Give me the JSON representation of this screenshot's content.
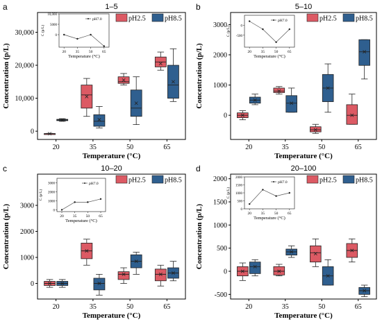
{
  "colors": {
    "ph25_fill": "#dc5a64",
    "ph85_fill": "#2f5f8f",
    "axis": "#000000",
    "inset_line": "#555555"
  },
  "chart_data": [
    {
      "type": "box",
      "panel": "a",
      "title": "1–5",
      "xlabel": "Temperature (°C)",
      "ylabel": "Concentration (p/L)",
      "ylim": [
        -2500,
        36000
      ],
      "yticks": [
        0,
        10000,
        20000,
        30000
      ],
      "ytick_labels": [
        "0",
        "10,000",
        "20,000",
        "30,000"
      ],
      "categories": [
        "20",
        "35",
        "50",
        "65"
      ],
      "legend": [
        "pH2.5",
        "pH8.5"
      ],
      "series": [
        {
          "name": "pH2.5",
          "boxes": [
            {
              "min": -900,
              "q1": -800,
              "median": -750,
              "q3": -700,
              "max": -650,
              "mean": -750
            },
            {
              "min": 4500,
              "q1": 7000,
              "median": 11000,
              "q3": 14000,
              "max": 16000,
              "mean": 10500
            },
            {
              "min": 14000,
              "q1": 14500,
              "median": 15000,
              "q3": 16500,
              "max": 17500,
              "mean": 15500
            },
            {
              "min": 18500,
              "q1": 19500,
              "median": 21000,
              "q3": 22500,
              "max": 24000,
              "mean": 20500
            }
          ]
        },
        {
          "name": "pH8.5",
          "boxes": [
            {
              "min": 3000,
              "q1": 3200,
              "median": 3400,
              "q3": 3600,
              "max": 3800,
              "mean": 3400
            },
            {
              "min": 1000,
              "q1": 1500,
              "median": 3000,
              "q3": 5000,
              "max": 7500,
              "mean": 3500
            },
            {
              "min": 2000,
              "q1": 4500,
              "median": 7000,
              "q3": 12500,
              "max": 16500,
              "mean": 8500
            },
            {
              "min": 9000,
              "q1": 10000,
              "median": 14000,
              "q3": 20000,
              "max": 25000,
              "mean": 15000
            }
          ]
        }
      ],
      "inset": {
        "series_name": "pH7.0",
        "xlabel": "Temperature (°C)",
        "ylabel": "C (p/L)",
        "categories": [
          "20",
          "35",
          "50",
          "65"
        ],
        "ylim": [
          -6000,
          10000
        ],
        "yticks": [
          0,
          5000,
          10000
        ],
        "ytick_labels": [
          "0",
          "5000",
          "10,000"
        ],
        "values": [
          0,
          -2000,
          0,
          -5500
        ]
      }
    },
    {
      "type": "box",
      "panel": "b",
      "title": "5–10",
      "xlabel": "Temperature (°C)",
      "ylabel": "Concentration (p/L)",
      "ylim": [
        -800,
        3400
      ],
      "yticks": [
        0,
        1000,
        2000,
        3000
      ],
      "ytick_labels": [
        "0",
        "1000",
        "2000",
        "3000"
      ],
      "categories": [
        "20",
        "35",
        "50",
        "65"
      ],
      "legend": [
        "pH2.5",
        "pH8.5"
      ],
      "series": [
        {
          "name": "pH2.5",
          "boxes": [
            {
              "min": -150,
              "q1": -80,
              "median": 0,
              "q3": 80,
              "max": 150,
              "mean": 0
            },
            {
              "min": 700,
              "q1": 750,
              "median": 800,
              "q3": 900,
              "max": 950,
              "mean": 800
            },
            {
              "min": -600,
              "q1": -550,
              "median": -480,
              "q3": -380,
              "max": -300,
              "mean": -480
            },
            {
              "min": -300,
              "q1": -300,
              "median": 0,
              "q3": 350,
              "max": 700,
              "mean": 0
            }
          ]
        },
        {
          "name": "pH8.5",
          "boxes": [
            {
              "min": 350,
              "q1": 400,
              "median": 500,
              "q3": 600,
              "max": 700,
              "mean": 500
            },
            {
              "min": 100,
              "q1": 100,
              "median": 400,
              "q3": 650,
              "max": 900,
              "mean": 400
            },
            {
              "min": 100,
              "q1": 450,
              "median": 900,
              "q3": 1350,
              "max": 1700,
              "mean": 900
            },
            {
              "min": 1200,
              "q1": 1650,
              "median": 2100,
              "q3": 2500,
              "max": 2500,
              "mean": 2100
            }
          ]
        }
      ],
      "inset": {
        "series_name": "pH7.0",
        "xlabel": "Temperature (°C)",
        "ylabel": "C (p/L)",
        "categories": [
          "20",
          "35",
          "50",
          "65"
        ],
        "ylim": [
          -1100,
          500
        ],
        "yticks": [
          -500,
          0
        ],
        "ytick_labels": [
          "-500",
          "0"
        ],
        "values": [
          200,
          -200,
          -850,
          -200
        ]
      }
    },
    {
      "type": "box",
      "panel": "c",
      "title": "10–20",
      "xlabel": "Temperature (°C)",
      "ylabel": "Concentration (p/L)",
      "ylim": [
        -600,
        4200
      ],
      "yticks": [
        0,
        1000,
        2000,
        3000
      ],
      "ytick_labels": [
        "0",
        "1000",
        "2000",
        "3000"
      ],
      "categories": [
        "20",
        "35",
        "50",
        "65"
      ],
      "legend": [
        "pH2.5",
        "pH8.5"
      ],
      "series": [
        {
          "name": "pH2.5",
          "boxes": [
            {
              "min": -150,
              "q1": -80,
              "median": 0,
              "q3": 80,
              "max": 150,
              "mean": 0
            },
            {
              "min": 700,
              "q1": 950,
              "median": 1250,
              "q3": 1550,
              "max": 1700,
              "mean": 1250
            },
            {
              "min": 0,
              "q1": 150,
              "median": 350,
              "q3": 450,
              "max": 600,
              "mean": 350
            },
            {
              "min": -100,
              "q1": 100,
              "median": 350,
              "q3": 550,
              "max": 700,
              "mean": 350
            }
          ]
        },
        {
          "name": "pH8.5",
          "boxes": [
            {
              "min": -150,
              "q1": -80,
              "median": 0,
              "q3": 80,
              "max": 150,
              "mean": 0
            },
            {
              "min": -450,
              "q1": -250,
              "median": 0,
              "q3": 200,
              "max": 350,
              "mean": 0
            },
            {
              "min": 350,
              "q1": 600,
              "median": 850,
              "q3": 1100,
              "max": 1200,
              "mean": 850
            },
            {
              "min": 100,
              "q1": 200,
              "median": 400,
              "q3": 600,
              "max": 850,
              "mean": 400
            }
          ]
        }
      ],
      "inset": {
        "series_name": "pH7.0",
        "xlabel": "Temperature (°C)",
        "ylabel": "C (p/L)",
        "categories": [
          "20",
          "35",
          "50",
          "65"
        ],
        "ylim": [
          -200,
          3500
        ],
        "yticks": [
          0,
          1000,
          2000,
          3000
        ],
        "ytick_labels": [
          "0",
          "1000",
          "2000",
          "3000"
        ],
        "values": [
          0,
          850,
          850,
          1200
        ]
      }
    },
    {
      "type": "box",
      "panel": "d",
      "title": "20–100",
      "xlabel": "Temperature (°C)",
      "ylabel": "Concentration (p/L)",
      "ylim": [
        -600,
        2100
      ],
      "yticks": [
        -500,
        0,
        500,
        1000,
        1500,
        2000
      ],
      "ytick_labels": [
        "-500",
        "0",
        "500",
        "1000",
        "1500",
        "2000"
      ],
      "categories": [
        "20",
        "35",
        "50",
        "65"
      ],
      "legend": [
        "pH2.5",
        "pH8.5"
      ],
      "series": [
        {
          "name": "pH2.5",
          "boxes": [
            {
              "min": -200,
              "q1": -100,
              "median": 0,
              "q3": 100,
              "max": 180,
              "mean": 0
            },
            {
              "min": -100,
              "q1": -80,
              "median": 0,
              "q3": 100,
              "max": 150,
              "mean": 0
            },
            {
              "min": 100,
              "q1": 200,
              "median": 400,
              "q3": 550,
              "max": 700,
              "mean": 380
            },
            {
              "min": 200,
              "q1": 300,
              "median": 450,
              "q3": 600,
              "max": 700,
              "mean": 450
            }
          ]
        },
        {
          "name": "pH8.5",
          "boxes": [
            {
              "min": -100,
              "q1": -50,
              "median": 100,
              "q3": 200,
              "max": 250,
              "mean": 100
            },
            {
              "min": 300,
              "q1": 350,
              "median": 420,
              "q3": 480,
              "max": 550,
              "mean": 420
            },
            {
              "min": -300,
              "q1": -300,
              "median": -100,
              "q3": 100,
              "max": 250,
              "mean": -100
            },
            {
              "min": -550,
              "q1": -500,
              "median": -420,
              "q3": -350,
              "max": -300,
              "mean": -420
            }
          ]
        }
      ],
      "inset": {
        "series_name": "pH7.0",
        "xlabel": "Temperature (°C)",
        "ylabel": "C (p/L)",
        "categories": [
          "20",
          "35",
          "50",
          "65"
        ],
        "ylim": [
          0,
          2000
        ],
        "yticks": [
          0,
          500,
          1000,
          1500,
          2000
        ],
        "ytick_labels": [
          "0",
          "500",
          "1000",
          "1500",
          "2000"
        ],
        "values": [
          300,
          1200,
          800,
          1000
        ]
      }
    }
  ]
}
